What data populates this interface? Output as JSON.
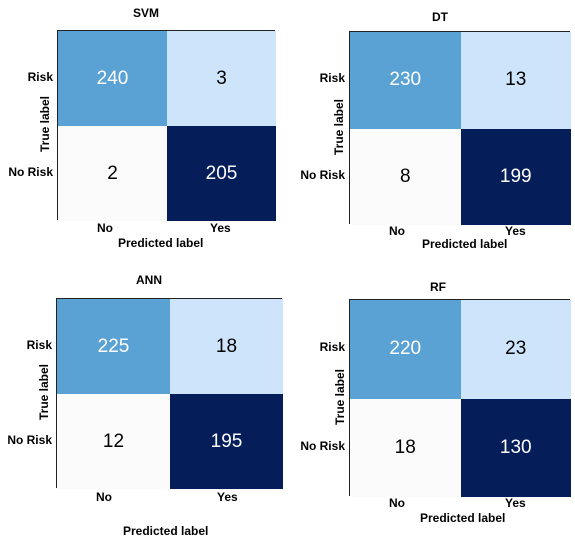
{
  "chart_data": [
    {
      "type": "heatmap",
      "title": "SVM",
      "xlabel": "Predicted label",
      "ylabel": "True label",
      "x_categories": [
        "No",
        "Yes"
      ],
      "y_categories": [
        "Risk",
        "No Risk"
      ],
      "matrix": [
        [
          240,
          3
        ],
        [
          2,
          205
        ]
      ]
    },
    {
      "type": "heatmap",
      "title": "DT",
      "xlabel": "Predicted label",
      "ylabel": "True label",
      "x_categories": [
        "No",
        "Yes"
      ],
      "y_categories": [
        "Risk",
        "No Risk"
      ],
      "matrix": [
        [
          230,
          13
        ],
        [
          8,
          199
        ]
      ]
    },
    {
      "type": "heatmap",
      "title": "ANN",
      "xlabel": "Predicted label",
      "ylabel": "True label",
      "x_categories": [
        "No",
        "Yes"
      ],
      "y_categories": [
        "Risk",
        "No Risk"
      ],
      "matrix": [
        [
          225,
          18
        ],
        [
          12,
          195
        ]
      ]
    },
    {
      "type": "heatmap",
      "title": "RF",
      "xlabel": "Predicted label",
      "ylabel": "True label",
      "x_categories": [
        "No",
        "Yes"
      ],
      "y_categories": [
        "Risk",
        "No Risk"
      ],
      "matrix": [
        [
          220,
          23
        ],
        [
          18,
          130
        ]
      ]
    }
  ],
  "colors": {
    "cell_top_left": "#5aa2d4",
    "cell_top_right": "#cde4fa",
    "cell_bottom_left": "#fbfbfb",
    "cell_bottom_right": "#051e5a",
    "text_dark": "#000000",
    "text_light": "#ffffff"
  }
}
